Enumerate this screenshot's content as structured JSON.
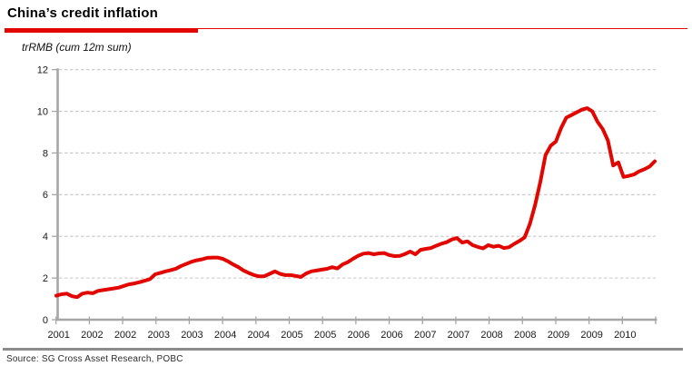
{
  "header": {
    "title": "China’s credit inflation",
    "subtitle": "trRMB (cum 12m sum)"
  },
  "footer": {
    "source": "Source: SG Cross Asset Research, POBC"
  },
  "colors": {
    "accent_red": "#e10600",
    "line_red": "#e10600",
    "axis_gray": "#a6a6a6",
    "grid_gray": "#c6c6c6",
    "separator_gray": "#8c8c8c",
    "tick_text": "#1a1a1a"
  },
  "chart_data": {
    "type": "line",
    "title": "China’s credit inflation",
    "units_note": "trRMB (cum 12m sum)",
    "ylim": [
      0,
      12
    ],
    "y_ticks": [
      0,
      2,
      4,
      6,
      8,
      10,
      12
    ],
    "grid": "horizontal-dashed",
    "legend": "none",
    "x_tick_labels": [
      "2001",
      "2002",
      "2002",
      "2003",
      "2003",
      "2004",
      "2004",
      "2005",
      "2005",
      "2006",
      "2006",
      "2007",
      "2007",
      "2008",
      "2008",
      "2009",
      "2009",
      "2010"
    ],
    "series": [
      {
        "color": "#e10600",
        "x_start": "2001-01",
        "x_interval": "monthly",
        "values": [
          1.15,
          1.22,
          1.25,
          1.13,
          1.08,
          1.25,
          1.3,
          1.27,
          1.38,
          1.42,
          1.46,
          1.5,
          1.54,
          1.62,
          1.7,
          1.74,
          1.8,
          1.87,
          1.95,
          2.18,
          2.25,
          2.32,
          2.38,
          2.45,
          2.58,
          2.68,
          2.78,
          2.85,
          2.9,
          2.97,
          2.98,
          2.98,
          2.92,
          2.8,
          2.65,
          2.52,
          2.36,
          2.24,
          2.14,
          2.08,
          2.09,
          2.2,
          2.32,
          2.2,
          2.14,
          2.14,
          2.1,
          2.05,
          2.22,
          2.32,
          2.36,
          2.4,
          2.44,
          2.52,
          2.46,
          2.65,
          2.76,
          2.92,
          3.07,
          3.17,
          3.2,
          3.14,
          3.18,
          3.2,
          3.1,
          3.05,
          3.06,
          3.15,
          3.27,
          3.14,
          3.35,
          3.4,
          3.44,
          3.55,
          3.65,
          3.72,
          3.85,
          3.92,
          3.7,
          3.76,
          3.58,
          3.49,
          3.42,
          3.58,
          3.5,
          3.55,
          3.44,
          3.48,
          3.64,
          3.78,
          3.95,
          4.6,
          5.5,
          6.6,
          7.9,
          8.35,
          8.55,
          9.2,
          9.7,
          9.82,
          9.95,
          10.08,
          10.15,
          10.0,
          9.5,
          9.15,
          8.6,
          7.4,
          7.55,
          6.85,
          6.9,
          6.97,
          7.12,
          7.22,
          7.35,
          7.6
        ]
      }
    ]
  }
}
